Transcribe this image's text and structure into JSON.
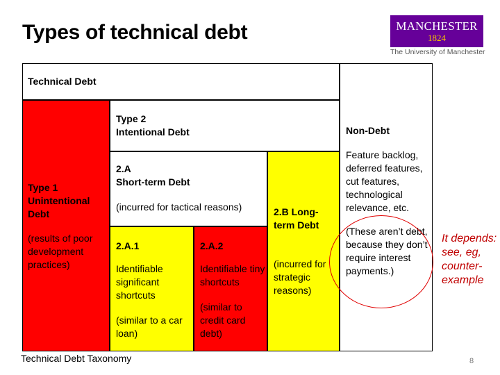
{
  "slide": {
    "title": "Types of technical debt",
    "caption": "Technical Debt Taxonomy",
    "page_number": "8"
  },
  "logo": {
    "name": "MANCHESTER",
    "year": "1824",
    "subtitle": "The University of Manchester"
  },
  "diagram": {
    "technical_debt": {
      "label": "Technical Debt"
    },
    "type1": {
      "title": "Type 1 Unintentional Debt",
      "desc": "(results of poor development practices)",
      "color": "#ff0000"
    },
    "type2": {
      "title_line1": "Type 2",
      "title_line2": "Intentional Debt"
    },
    "type2a": {
      "title_line1": "2.A",
      "title_line2": "Short-term Debt",
      "desc": "(incurred for tactical reasons)"
    },
    "type2a1": {
      "title": "2.A.1",
      "desc": "Identifiable significant shortcuts",
      "note": "(similar to a car loan)",
      "color": "#ffff00"
    },
    "type2a2": {
      "title": "2.A.2",
      "desc": "Identifiable tiny shortcuts",
      "note": "(similar to credit card debt)",
      "color": "#ff0000"
    },
    "type2b": {
      "title": "2.B Long-term Debt",
      "desc": "(incurred for strategic reasons)",
      "color": "#ffff00"
    },
    "nondebt": {
      "title": "Non-Debt",
      "desc": "Feature backlog, deferred features, cut features, technological relevance, etc.",
      "note": "(These aren’t debt, because they don’t require interest payments.)"
    }
  },
  "annotation": {
    "text": "It depends: see, eg, counter-example",
    "color": "#c00000"
  }
}
